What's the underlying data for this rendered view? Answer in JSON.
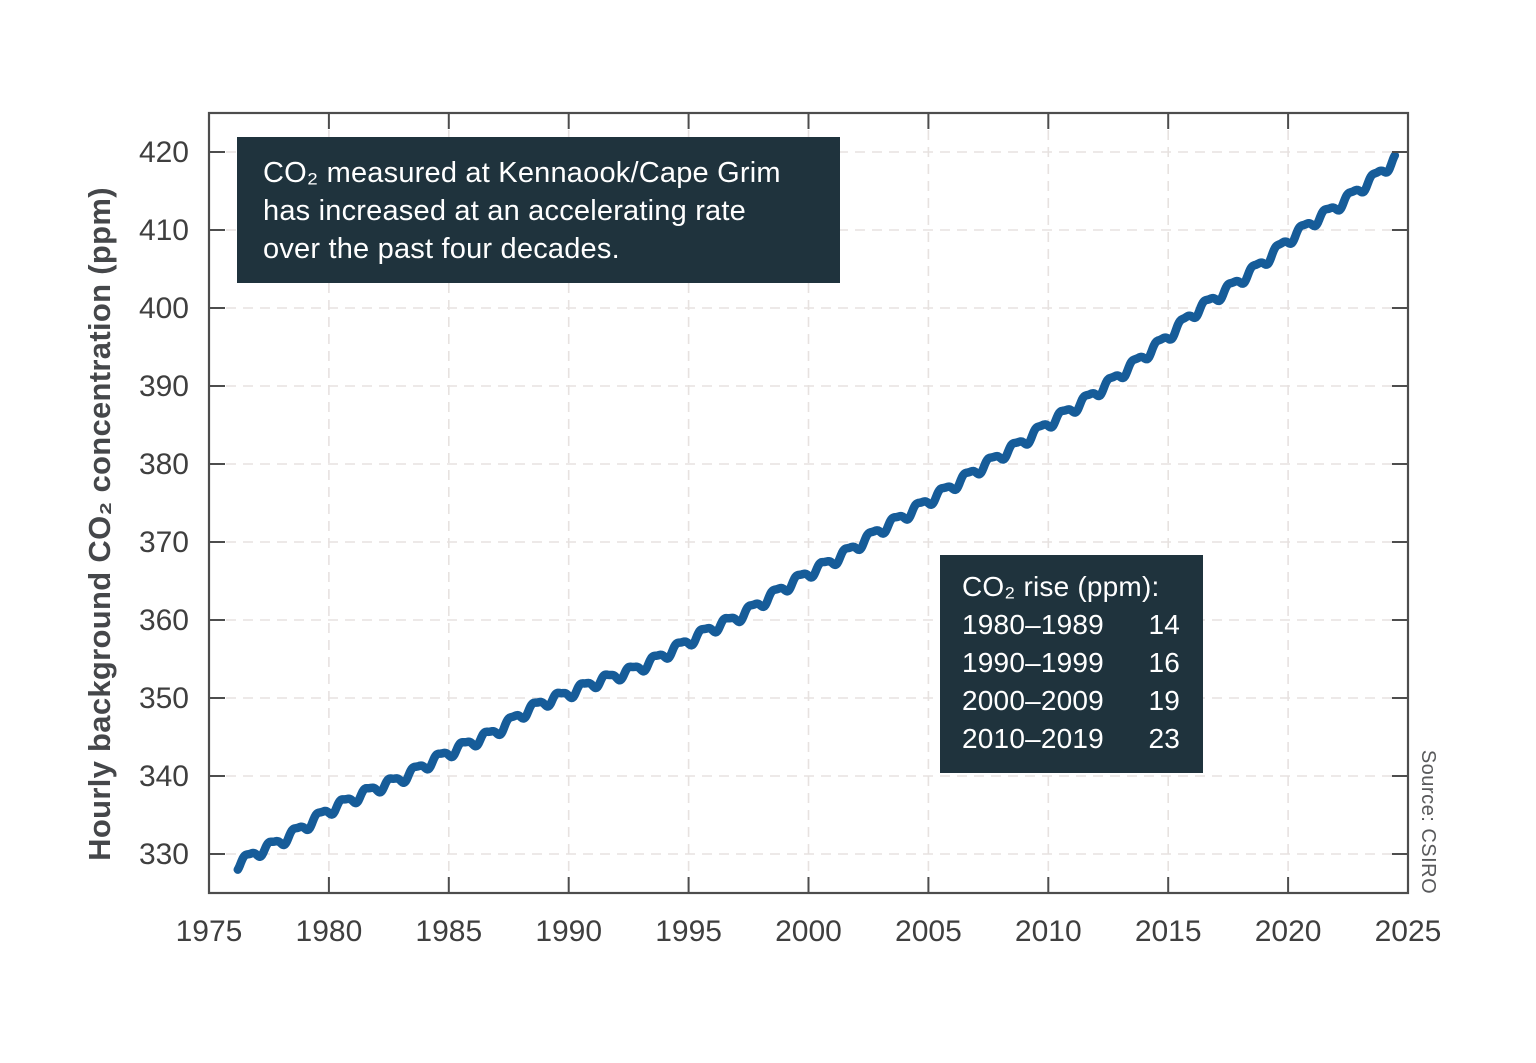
{
  "annotation": {
    "lines": [
      "CO₂ measured at Kennaook/Cape Grim",
      "has increased at an accelerating rate",
      "over the past four decades."
    ]
  },
  "stats_box": {
    "title": "CO₂ rise (ppm):",
    "rows": [
      {
        "period": "1980–1989",
        "value": "14"
      },
      {
        "period": "1990–1999",
        "value": "16"
      },
      {
        "period": "2000–2009",
        "value": "19"
      },
      {
        "period": "2010–2019",
        "value": "23"
      }
    ]
  },
  "source": "Source: CSIRO",
  "colors": {
    "panel_bg": "#1f333d",
    "panel_text": "#ffffff",
    "line": "#165c99",
    "axis": "#4d4d4d",
    "tick_text": "#3f3f3f",
    "grid": "#e7e2e0"
  },
  "chart_data": {
    "type": "line",
    "title": "",
    "xlabel": "",
    "ylabel": "Hourly background CO₂ concentration (ppm)",
    "xlim": [
      1975,
      2025
    ],
    "ylim": [
      325,
      425
    ],
    "xticks": [
      1975,
      1980,
      1985,
      1990,
      1995,
      2000,
      2005,
      2010,
      2015,
      2020,
      2025
    ],
    "yticks": [
      330,
      340,
      350,
      360,
      370,
      380,
      390,
      400,
      410,
      420
    ],
    "grid": "dashed",
    "legend": "none",
    "series": [
      {
        "name": "Hourly background CO₂ concentration at Kennaook/Cape Grim",
        "x": [
          1976.2,
          1977,
          1978,
          1979,
          1980,
          1981,
          1982,
          1983,
          1984,
          1985,
          1986,
          1987,
          1988,
          1989,
          1990,
          1991,
          1992,
          1993,
          1994,
          1995,
          1996,
          1997,
          1998,
          1999,
          2000,
          2001,
          2002,
          2003,
          2004,
          2005,
          2006,
          2007,
          2008,
          2009,
          2010,
          2011,
          2012,
          2013,
          2014,
          2015,
          2016,
          2017,
          2018,
          2019,
          2020,
          2021,
          2022,
          2023,
          2024,
          2024.45
        ],
        "y": [
          328.7,
          330.2,
          331.7,
          333.6,
          335.6,
          337.1,
          338.5,
          339.7,
          341.4,
          343.0,
          344.4,
          345.8,
          347.9,
          349.5,
          350.6,
          351.9,
          352.9,
          354.0,
          355.6,
          357.3,
          359.0,
          360.3,
          362.2,
          364.2,
          366.0,
          367.6,
          369.5,
          371.6,
          373.4,
          375.3,
          377.2,
          379.2,
          381.1,
          383.0,
          385.2,
          387.1,
          389.2,
          391.5,
          393.9,
          396.4,
          399.2,
          401.4,
          403.6,
          406.0,
          408.7,
          411.0,
          413.0,
          415.3,
          417.8,
          419.1
        ],
        "seasonal_amplitude_ppm": 0.6,
        "seasonal_period_years": 1
      }
    ]
  }
}
